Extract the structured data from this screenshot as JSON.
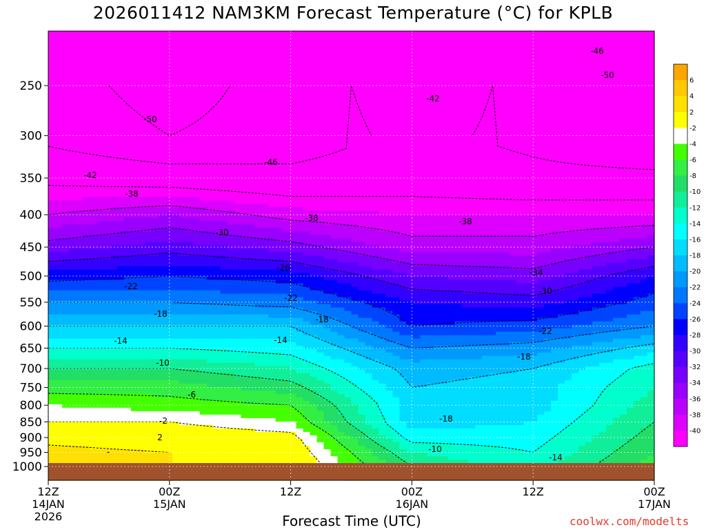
{
  "title": "2026011412 NAM3KM Forecast Temperature (°C) for KPLB",
  "xlabel": "Forecast Time (UTC)",
  "credit": "coolwx.com/modelts",
  "chart_data": {
    "type": "contour-filled",
    "title": "2026011412 NAM3KM Forecast Temperature (°C) for KPLB",
    "xlabel": "Forecast Time (UTC)",
    "ylabel": "",
    "y_axis": "pressure (hPa), inverted log scale",
    "y_ticks": [
      250,
      300,
      350,
      400,
      450,
      500,
      550,
      600,
      650,
      700,
      750,
      800,
      850,
      900,
      950,
      1000
    ],
    "x_ticks": [
      {
        "hours": 0,
        "label": "12Z",
        "sub1": "14JAN",
        "sub2": "2026"
      },
      {
        "hours": 12,
        "label": "00Z",
        "sub1": "15JAN",
        "sub2": ""
      },
      {
        "hours": 24,
        "label": "12Z",
        "sub1": "",
        "sub2": ""
      },
      {
        "hours": 36,
        "label": "00Z",
        "sub1": "16JAN",
        "sub2": ""
      },
      {
        "hours": 48,
        "label": "12Z",
        "sub1": "",
        "sub2": ""
      },
      {
        "hours": 60,
        "label": "00Z",
        "sub1": "17JAN",
        "sub2": ""
      }
    ],
    "colorbar": {
      "levels": [
        6,
        4,
        2,
        -2,
        -4,
        -6,
        -8,
        -10,
        -12,
        -14,
        -16,
        -18,
        -20,
        -22,
        -24,
        -26,
        -28,
        -30,
        -32,
        -34,
        -36,
        -38,
        -40
      ],
      "colors": [
        "#ffa500",
        "#ffc800",
        "#ffe000",
        "#ffff00",
        "#ffffff",
        "#44ff00",
        "#33ee44",
        "#22dd66",
        "#11ee99",
        "#00ffcc",
        "#00ffff",
        "#00ddff",
        "#00bbff",
        "#0099ff",
        "#0077ff",
        "#0044ff",
        "#0000ff",
        "#3300ff",
        "#5500ff",
        "#7700ff",
        "#9900ff",
        "#bb00ff",
        "#dd00ff",
        "#ff00ff"
      ]
    },
    "temperature_profile": [
      {
        "hours": 0,
        "p": [
          250,
          300,
          350,
          400,
          450,
          500,
          550,
          600,
          650,
          700,
          750,
          800,
          850,
          900,
          950,
          1000
        ],
        "t": [
          -48,
          -47,
          -43,
          -38,
          -33,
          -27,
          -22,
          -18,
          -14,
          -10,
          -7,
          -4,
          -2,
          1,
          3,
          3
        ]
      },
      {
        "hours": 12,
        "p": [
          250,
          300,
          350,
          400,
          450,
          500,
          550,
          600,
          650,
          700,
          750,
          800,
          850,
          900,
          950,
          1000
        ],
        "t": [
          -52,
          -50,
          -44,
          -36,
          -31,
          -26,
          -22,
          -18,
          -14,
          -10,
          -7,
          -5,
          -2,
          0,
          2,
          2
        ]
      },
      {
        "hours": 24,
        "p": [
          250,
          300,
          350,
          400,
          450,
          500,
          550,
          600,
          650,
          700,
          750,
          800,
          850,
          900,
          950,
          1000
        ],
        "t": [
          -48,
          -48,
          -45,
          -39,
          -33,
          -27,
          -23,
          -18,
          -15,
          -12,
          -9,
          -6,
          -4,
          -1,
          0,
          1
        ]
      },
      {
        "hours": 36,
        "p": [
          250,
          300,
          350,
          400,
          450,
          500,
          550,
          600,
          650,
          700,
          750,
          800,
          850,
          900,
          950,
          1000
        ],
        "t": [
          -44,
          -45,
          -44,
          -40,
          -37,
          -32,
          -28,
          -26,
          -22,
          -19,
          -18,
          -17,
          -17,
          -15,
          -12,
          -10
        ]
      },
      {
        "hours": 48,
        "p": [
          250,
          300,
          350,
          400,
          450,
          500,
          550,
          600,
          650,
          700,
          750,
          800,
          850,
          900,
          950,
          1000
        ],
        "t": [
          -47,
          -47,
          -45,
          -40,
          -37,
          -33,
          -29,
          -25,
          -21,
          -18,
          -17,
          -17,
          -16,
          -15,
          -14,
          -13
        ]
      },
      {
        "hours": 60,
        "p": [
          250,
          300,
          350,
          400,
          450,
          500,
          550,
          600,
          650,
          700,
          750,
          800,
          850,
          900,
          950,
          1000
        ],
        "t": [
          -48,
          -50,
          -45,
          -40,
          -34,
          -28,
          -25,
          -22,
          -17,
          -13,
          -12,
          -11,
          -10,
          -9,
          -8,
          -7
        ]
      }
    ],
    "contour_labels": [
      "-46",
      "-50",
      "-42",
      "-50",
      "-46",
      "-42",
      "-38",
      "-38",
      "-38",
      "-30",
      "-34",
      "-26",
      "-22",
      "-22",
      "-30",
      "-18",
      "-18",
      "-22",
      "-14",
      "-14",
      "-18",
      "-10",
      "-6",
      "-2",
      "2",
      "-18",
      "-10",
      "-14",
      "-"
    ]
  }
}
